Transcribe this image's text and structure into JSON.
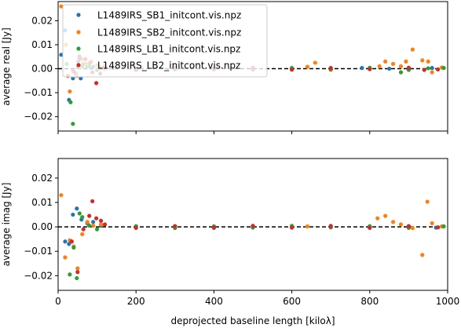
{
  "figure": {
    "xlabel": "deprojected baseline length [kiloλ]",
    "xlim": [
      0,
      1000
    ],
    "xticks": [
      0,
      200,
      400,
      600,
      800,
      1000
    ],
    "legend_location": "upper-left of top panel",
    "zero_line": "black dashed line at y = 0 in both panels"
  },
  "series": [
    {
      "name": "L1489IRS_SB1_initcont.vis.npz",
      "color": "#1f77b4"
    },
    {
      "name": "L1489IRS_SB2_initcont.vis.npz",
      "color": "#ff7f0e"
    },
    {
      "name": "L1489IRS_LB1_initcont.vis.npz",
      "color": "#2ca02c"
    },
    {
      "name": "L1489IRS_LB2_initcont.vis.npz",
      "color": "#d62728"
    }
  ],
  "chart_data": [
    {
      "type": "scatter",
      "panel": "top",
      "ylabel": "average real [Jy]",
      "xlim": [
        0,
        1000
      ],
      "ylim": [
        -0.026,
        0.028
      ],
      "yticks": [
        -0.02,
        -0.01,
        0.0,
        0.01,
        0.02
      ],
      "ytick_labels": [
        "−0.02",
        "−0.01",
        "0.00",
        "0.01",
        "0.02"
      ],
      "series": [
        {
          "name": "L1489IRS_SB1_initcont.vis.npz",
          "points": [
            [
              8,
              0.0058
            ],
            [
              18,
              0.016
            ],
            [
              28,
              -0.013
            ],
            [
              38,
              -0.004
            ],
            [
              45,
              -0.002
            ],
            [
              52,
              0.003
            ],
            [
              58,
              -0.004
            ],
            [
              65,
              0.002
            ],
            [
              75,
              0.001
            ],
            [
              90,
              0.0008
            ],
            [
              110,
              0.0003
            ],
            [
              140,
              0.0002
            ],
            [
              200,
              -0.0005
            ],
            [
              300,
              0.0003
            ],
            [
              400,
              -0.0002
            ],
            [
              500,
              0.0004
            ],
            [
              600,
              0.0
            ],
            [
              700,
              -0.0003
            ],
            [
              780,
              0.0003
            ],
            [
              850,
              0.0
            ],
            [
              900,
              -0.0004
            ],
            [
              960,
              0.0003
            ]
          ]
        },
        {
          "name": "L1489IRS_SB2_initcont.vis.npz",
          "points": [
            [
              8,
              0.026
            ],
            [
              20,
              0.01
            ],
            [
              30,
              -0.0095
            ],
            [
              38,
              -0.001
            ],
            [
              48,
              -0.003
            ],
            [
              60,
              0.004
            ],
            [
              72,
              0.002
            ],
            [
              85,
              0.003
            ],
            [
              100,
              0.0015
            ],
            [
              120,
              0.0
            ],
            [
              640,
              0.0008
            ],
            [
              660,
              0.0025
            ],
            [
              700,
              -0.0005
            ],
            [
              825,
              0.001
            ],
            [
              840,
              0.003
            ],
            [
              860,
              0.002
            ],
            [
              880,
              0.001
            ],
            [
              893,
              0.003
            ],
            [
              910,
              0.008
            ],
            [
              935,
              0.0035
            ],
            [
              950,
              0.003
            ],
            [
              960,
              -0.0015
            ],
            [
              985,
              0.0005
            ]
          ]
        },
        {
          "name": "L1489IRS_LB1_initcont.vis.npz",
          "points": [
            [
              22,
              0.002
            ],
            [
              32,
              -0.014
            ],
            [
              38,
              -0.023
            ],
            [
              50,
              0.0005
            ],
            [
              55,
              0.0052
            ],
            [
              62,
              0.001
            ],
            [
              80,
              0.001
            ],
            [
              100,
              -0.0005
            ],
            [
              200,
              0.0004
            ],
            [
              300,
              -0.0003
            ],
            [
              400,
              0.0002
            ],
            [
              500,
              -0.0004
            ],
            [
              600,
              0.0003
            ],
            [
              700,
              -0.0002
            ],
            [
              800,
              0.0004
            ],
            [
              880,
              -0.0015
            ],
            [
              900,
              -0.0005
            ],
            [
              950,
              0.0002
            ],
            [
              990,
              0.0003
            ]
          ]
        },
        {
          "name": "L1489IRS_LB2_initcont.vis.npz",
          "points": [
            [
              25,
              -0.003
            ],
            [
              40,
              -0.001
            ],
            [
              55,
              0.0045
            ],
            [
              70,
              0.004
            ],
            [
              82,
              0.0025
            ],
            [
              88,
              -0.0015
            ],
            [
              98,
              -0.006
            ],
            [
              108,
              -0.002
            ],
            [
              120,
              0.001
            ],
            [
              200,
              -0.0004
            ],
            [
              300,
              0.0005
            ],
            [
              400,
              -0.0003
            ],
            [
              500,
              0.0002
            ],
            [
              600,
              -0.0004
            ],
            [
              700,
              0.0003
            ],
            [
              800,
              -0.0002
            ],
            [
              900,
              0.0004
            ],
            [
              940,
              -0.0005
            ],
            [
              975,
              -0.0003
            ]
          ]
        }
      ]
    },
    {
      "type": "scatter",
      "panel": "bottom",
      "ylabel": "average imag [Jy]",
      "xlabel": "deprojected baseline length [kiloλ]",
      "xlim": [
        0,
        1000
      ],
      "ylim": [
        -0.026,
        0.028
      ],
      "yticks": [
        -0.02,
        -0.01,
        0.0,
        0.01,
        0.02
      ],
      "ytick_labels": [
        "−0.02",
        "−0.01",
        "0.00",
        "0.01",
        "0.02"
      ],
      "series": [
        {
          "name": "L1489IRS_SB1_initcont.vis.npz",
          "points": [
            [
              18,
              -0.006
            ],
            [
              28,
              -0.007
            ],
            [
              38,
              0.005
            ],
            [
              48,
              0.0075
            ],
            [
              60,
              0.003
            ],
            [
              75,
              0.0015
            ],
            [
              90,
              0.002
            ],
            [
              110,
              0.0005
            ],
            [
              200,
              -0.0002
            ],
            [
              300,
              0.0003
            ],
            [
              400,
              -0.0004
            ],
            [
              500,
              0.0002
            ],
            [
              600,
              -0.0003
            ],
            [
              700,
              0.0004
            ],
            [
              800,
              -0.0002
            ],
            [
              900,
              0.0003
            ],
            [
              970,
              -0.0003
            ]
          ]
        },
        {
          "name": "L1489IRS_SB2_initcont.vis.npz",
          "points": [
            [
              8,
              0.013
            ],
            [
              18,
              -0.0125
            ],
            [
              30,
              -0.0055
            ],
            [
              40,
              -0.008
            ],
            [
              50,
              -0.017
            ],
            [
              62,
              -0.003
            ],
            [
              75,
              0.002
            ],
            [
              90,
              0.0005
            ],
            [
              110,
              0.001
            ],
            [
              300,
              -0.0005
            ],
            [
              500,
              0.0004
            ],
            [
              640,
              0.0002
            ],
            [
              820,
              0.0035
            ],
            [
              840,
              0.0045
            ],
            [
              860,
              0.002
            ],
            [
              880,
              0.001
            ],
            [
              910,
              -0.0005
            ],
            [
              935,
              -0.0115
            ],
            [
              948,
              0.0103
            ],
            [
              960,
              0.0015
            ],
            [
              985,
              0.0002
            ]
          ]
        },
        {
          "name": "L1489IRS_LB1_initcont.vis.npz",
          "points": [
            [
              30,
              -0.0195
            ],
            [
              40,
              -0.0085
            ],
            [
              48,
              -0.021
            ],
            [
              55,
              0.0055
            ],
            [
              62,
              0.004
            ],
            [
              80,
              0.0005
            ],
            [
              100,
              -0.001
            ],
            [
              200,
              0.0003
            ],
            [
              300,
              -0.0004
            ],
            [
              400,
              0.0002
            ],
            [
              500,
              -0.0003
            ],
            [
              600,
              0.0004
            ],
            [
              700,
              -0.0002
            ],
            [
              800,
              0.0003
            ],
            [
              900,
              -0.0004
            ],
            [
              990,
              0.0002
            ]
          ]
        },
        {
          "name": "L1489IRS_LB2_initcont.vis.npz",
          "points": [
            [
              35,
              -0.006
            ],
            [
              50,
              -0.0185
            ],
            [
              65,
              -0.001
            ],
            [
              80,
              0.0045
            ],
            [
              88,
              0.0105
            ],
            [
              98,
              0.0035
            ],
            [
              110,
              0.0025
            ],
            [
              120,
              0.001
            ],
            [
              200,
              -0.0004
            ],
            [
              300,
              0.0003
            ],
            [
              400,
              -0.0002
            ],
            [
              500,
              0.0004
            ],
            [
              600,
              -0.0003
            ],
            [
              700,
              0.0002
            ],
            [
              800,
              -0.0004
            ],
            [
              900,
              0.0003
            ],
            [
              975,
              -0.0002
            ]
          ]
        }
      ]
    }
  ]
}
